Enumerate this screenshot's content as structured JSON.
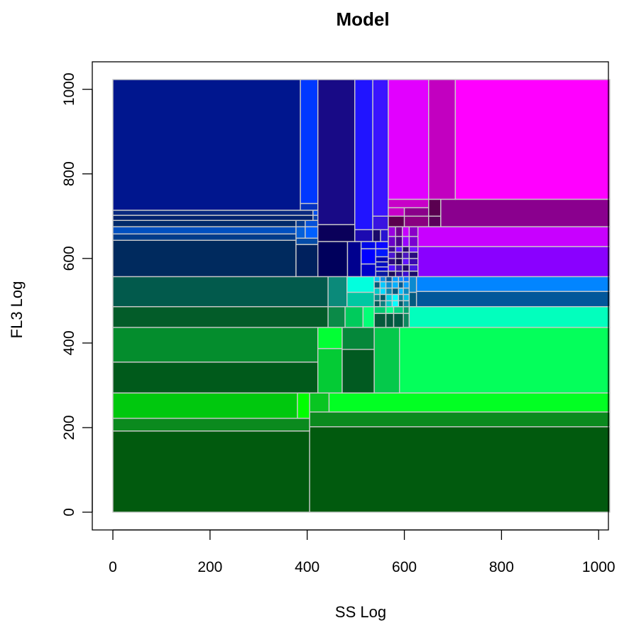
{
  "chart_data": {
    "type": "heatmap",
    "title": "Model",
    "xlabel": "SS Log",
    "ylabel": "FL3 Log",
    "xlim": [
      0,
      1023
    ],
    "ylim": [
      0,
      1023
    ],
    "xticks": [
      0,
      200,
      400,
      600,
      800,
      1000
    ],
    "yticks": [
      0,
      200,
      400,
      600,
      800,
      1000
    ],
    "grid": false,
    "cells": [
      [
        0,
        405,
        0,
        192,
        "#015a0e"
      ],
      [
        405,
        1023,
        0,
        202,
        "#015a0e"
      ],
      [
        0,
        405,
        192,
        222,
        "#0b8a1e"
      ],
      [
        405,
        1023,
        202,
        237,
        "#0b8a1e"
      ],
      [
        0,
        380,
        222,
        282,
        "#00c80e"
      ],
      [
        380,
        405,
        222,
        282,
        "#00ff00"
      ],
      [
        405,
        445,
        237,
        282,
        "#09c522"
      ],
      [
        445,
        1023,
        237,
        282,
        "#02ff23"
      ],
      [
        0,
        422,
        282,
        355,
        "#005a1b"
      ],
      [
        0,
        422,
        355,
        437,
        "#048d2d"
      ],
      [
        422,
        472,
        282,
        387,
        "#04cb35"
      ],
      [
        422,
        472,
        387,
        437,
        "#02ff34"
      ],
      [
        472,
        538,
        282,
        385,
        "#015a21"
      ],
      [
        472,
        538,
        385,
        437,
        "#05873a"
      ],
      [
        538,
        590,
        282,
        437,
        "#05c94b"
      ],
      [
        590,
        1023,
        282,
        437,
        "#04ff5b"
      ],
      [
        0,
        443,
        437,
        486,
        "#035c29"
      ],
      [
        443,
        478,
        437,
        486,
        "#0b8a48"
      ],
      [
        478,
        515,
        437,
        486,
        "#00cb5c"
      ],
      [
        515,
        538,
        437,
        486,
        "#04ff77"
      ],
      [
        538,
        562,
        437,
        470,
        "#055a3b"
      ],
      [
        562,
        578,
        437,
        470,
        "#04583f"
      ],
      [
        578,
        598,
        437,
        470,
        "#025c43"
      ],
      [
        598,
        610,
        437,
        470,
        "#0b8a5e"
      ],
      [
        538,
        562,
        470,
        486,
        "#00c972"
      ],
      [
        562,
        578,
        470,
        486,
        "#06ff8c"
      ],
      [
        578,
        598,
        470,
        486,
        "#05cf80"
      ],
      [
        598,
        610,
        470,
        486,
        "#04a06c"
      ],
      [
        610,
        1023,
        437,
        486,
        "#02ffbd"
      ],
      [
        0,
        443,
        486,
        557,
        "#025a4c"
      ],
      [
        443,
        482,
        486,
        557,
        "#0b8a7a"
      ],
      [
        482,
        538,
        486,
        520,
        "#00c8a2"
      ],
      [
        482,
        538,
        520,
        557,
        "#02ffde"
      ],
      [
        538,
        550,
        486,
        500,
        "#045a5a"
      ],
      [
        550,
        562,
        486,
        500,
        "#0b8080"
      ],
      [
        562,
        575,
        486,
        500,
        "#03c9c9"
      ],
      [
        575,
        588,
        486,
        500,
        "#02ffff"
      ],
      [
        588,
        598,
        486,
        500,
        "#045a6a"
      ],
      [
        598,
        610,
        486,
        500,
        "#0b8aa0"
      ],
      [
        538,
        550,
        500,
        515,
        "#0b8a8a"
      ],
      [
        550,
        562,
        500,
        515,
        "#045a66"
      ],
      [
        562,
        575,
        500,
        515,
        "#02cfe0"
      ],
      [
        575,
        588,
        500,
        515,
        "#04ffff"
      ],
      [
        588,
        598,
        500,
        515,
        "#0b8aa5"
      ],
      [
        598,
        610,
        500,
        515,
        "#03c0e0"
      ],
      [
        538,
        550,
        515,
        530,
        "#03c9c9"
      ],
      [
        550,
        562,
        515,
        530,
        "#02dcff"
      ],
      [
        562,
        575,
        515,
        530,
        "#0b8ab0"
      ],
      [
        575,
        588,
        515,
        530,
        "#045a80"
      ],
      [
        588,
        598,
        515,
        530,
        "#04c0ff"
      ],
      [
        598,
        610,
        515,
        530,
        "#0b8ac0"
      ],
      [
        538,
        550,
        530,
        545,
        "#045a7a"
      ],
      [
        550,
        562,
        530,
        545,
        "#03c9ff"
      ],
      [
        562,
        575,
        530,
        545,
        "#0b8ad0"
      ],
      [
        575,
        588,
        530,
        545,
        "#03b0ff"
      ],
      [
        588,
        598,
        530,
        545,
        "#045a90"
      ],
      [
        598,
        610,
        530,
        545,
        "#02a0ff"
      ],
      [
        538,
        550,
        545,
        557,
        "#02c0ff"
      ],
      [
        550,
        562,
        545,
        557,
        "#0b8ae0"
      ],
      [
        562,
        575,
        545,
        557,
        "#045aa0"
      ],
      [
        575,
        588,
        545,
        557,
        "#02a0ff"
      ],
      [
        588,
        598,
        545,
        557,
        "#0b8aff"
      ],
      [
        598,
        610,
        545,
        557,
        "#0478ff"
      ],
      [
        610,
        625,
        486,
        520,
        "#045a80"
      ],
      [
        610,
        625,
        520,
        557,
        "#0b8ad0"
      ],
      [
        625,
        1023,
        486,
        522,
        "#02579a"
      ],
      [
        625,
        1023,
        522,
        557,
        "#0285ff"
      ],
      [
        0,
        377,
        557,
        643,
        "#002a5e"
      ],
      [
        377,
        425,
        557,
        633,
        "#00215e"
      ],
      [
        377,
        425,
        633,
        648,
        "#044ca8"
      ],
      [
        0,
        377,
        643,
        658,
        "#003c8a"
      ],
      [
        0,
        377,
        658,
        675,
        "#0050c0"
      ],
      [
        377,
        396,
        648,
        675,
        "#0560d8"
      ],
      [
        396,
        425,
        648,
        675,
        "#0060ff"
      ],
      [
        0,
        377,
        675,
        690,
        "#002a6a"
      ],
      [
        377,
        396,
        675,
        690,
        "#043a90"
      ],
      [
        396,
        425,
        675,
        690,
        "#0550d8"
      ],
      [
        0,
        412,
        690,
        702,
        "#00216e"
      ],
      [
        412,
        425,
        690,
        702,
        "#033fb0"
      ],
      [
        0,
        412,
        702,
        714,
        "#0a2a80"
      ],
      [
        412,
        425,
        702,
        714,
        "#0050f0"
      ],
      [
        0,
        386,
        714,
        1023,
        "#00168e"
      ],
      [
        386,
        422,
        714,
        730,
        "#0532c0"
      ],
      [
        386,
        422,
        730,
        1023,
        "#0038ff"
      ],
      [
        422,
        483,
        557,
        640,
        "#00005c"
      ],
      [
        483,
        511,
        557,
        640,
        "#00008e"
      ],
      [
        511,
        541,
        557,
        587,
        "#0000c8"
      ],
      [
        511,
        541,
        587,
        623,
        "#0000ff"
      ],
      [
        541,
        567,
        557,
        570,
        "#0a18a0"
      ],
      [
        541,
        567,
        570,
        580,
        "#0000d8"
      ],
      [
        541,
        567,
        580,
        592,
        "#0010c0"
      ],
      [
        541,
        567,
        592,
        604,
        "#0000b0"
      ],
      [
        541,
        567,
        604,
        623,
        "#0018ff"
      ],
      [
        511,
        541,
        623,
        640,
        "#0008e8"
      ],
      [
        541,
        567,
        623,
        640,
        "#0a08ff"
      ],
      [
        422,
        498,
        640,
        680,
        "#0a005a"
      ],
      [
        422,
        498,
        680,
        1023,
        "#180a86"
      ],
      [
        498,
        535,
        640,
        668,
        "#1c0ab0"
      ],
      [
        498,
        535,
        668,
        1023,
        "#2014ff"
      ],
      [
        535,
        551,
        640,
        668,
        "#1a0a6a"
      ],
      [
        551,
        567,
        640,
        668,
        "#2814d0"
      ],
      [
        535,
        567,
        668,
        700,
        "#3a14e0"
      ],
      [
        535,
        567,
        700,
        1023,
        "#3a14ff"
      ],
      [
        567,
        582,
        557,
        570,
        "#1a0a5a"
      ],
      [
        582,
        596,
        557,
        570,
        "#2a0a90"
      ],
      [
        596,
        610,
        557,
        570,
        "#3a0ad0"
      ],
      [
        610,
        628,
        557,
        570,
        "#1a0a6a"
      ],
      [
        567,
        582,
        570,
        585,
        "#5014ff"
      ],
      [
        582,
        596,
        570,
        585,
        "#3a14b0"
      ],
      [
        596,
        610,
        570,
        585,
        "#220a6a"
      ],
      [
        610,
        628,
        570,
        585,
        "#4a14e0"
      ],
      [
        567,
        582,
        585,
        600,
        "#2a0a80"
      ],
      [
        582,
        596,
        585,
        600,
        "#1a0a5a"
      ],
      [
        596,
        610,
        585,
        600,
        "#6014ff"
      ],
      [
        610,
        628,
        585,
        600,
        "#3a0ab0"
      ],
      [
        567,
        582,
        600,
        615,
        "#4a14d0"
      ],
      [
        582,
        596,
        600,
        615,
        "#2a0a6a"
      ],
      [
        596,
        610,
        600,
        615,
        "#4a14c0"
      ],
      [
        610,
        628,
        600,
        615,
        "#2a0a80"
      ],
      [
        567,
        582,
        615,
        628,
        "#3a0a90"
      ],
      [
        582,
        596,
        615,
        628,
        "#5a14ff"
      ],
      [
        596,
        610,
        615,
        628,
        "#2a0a70"
      ],
      [
        610,
        628,
        615,
        628,
        "#7014ff"
      ],
      [
        628,
        1023,
        557,
        628,
        "#8a00ff"
      ],
      [
        567,
        582,
        628,
        652,
        "#6a00c8"
      ],
      [
        582,
        596,
        628,
        652,
        "#4a008e"
      ],
      [
        596,
        610,
        628,
        652,
        "#9a00ff"
      ],
      [
        610,
        628,
        628,
        652,
        "#7a00d0"
      ],
      [
        567,
        582,
        652,
        675,
        "#9a00e0"
      ],
      [
        582,
        596,
        652,
        675,
        "#6a008e"
      ],
      [
        596,
        610,
        652,
        675,
        "#c800ff"
      ],
      [
        610,
        628,
        652,
        675,
        "#8a00c8"
      ],
      [
        628,
        1023,
        628,
        675,
        "#c800ff"
      ],
      [
        567,
        600,
        675,
        700,
        "#5a004e"
      ],
      [
        600,
        650,
        675,
        700,
        "#8a0080"
      ],
      [
        650,
        675,
        675,
        700,
        "#5a005a"
      ],
      [
        567,
        600,
        700,
        720,
        "#c800c8"
      ],
      [
        600,
        650,
        700,
        720,
        "#8a008a"
      ],
      [
        650,
        675,
        700,
        740,
        "#5a0050"
      ],
      [
        675,
        1023,
        675,
        740,
        "#8a008e"
      ],
      [
        567,
        650,
        720,
        740,
        "#c800c8"
      ],
      [
        567,
        650,
        740,
        1023,
        "#e200ff"
      ],
      [
        650,
        705,
        740,
        1023,
        "#c200c0"
      ],
      [
        705,
        1023,
        740,
        1023,
        "#ff00ff"
      ]
    ]
  }
}
